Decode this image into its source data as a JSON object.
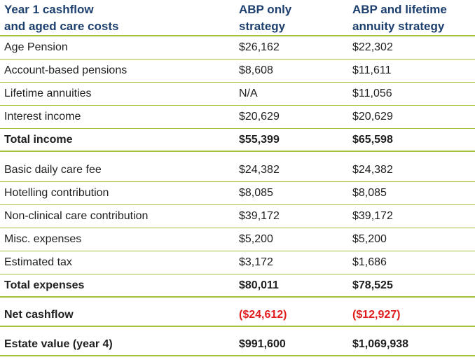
{
  "header": {
    "col1_line1": "Year 1 cashflow",
    "col1_line2": "and aged care costs",
    "col2_line1": "ABP only",
    "col2_line2": "strategy",
    "col3_line1": "ABP and lifetime",
    "col3_line2": "annuity strategy"
  },
  "income": [
    {
      "label": "Age Pension",
      "abp": "$26,162",
      "lifetime": "$22,302"
    },
    {
      "label": "Account-based pensions",
      "abp": "$8,608",
      "lifetime": "$11,611"
    },
    {
      "label": "Lifetime annuities",
      "abp": "N/A",
      "lifetime": "$11,056"
    },
    {
      "label": "Interest income",
      "abp": "$20,629",
      "lifetime": "$20,629"
    }
  ],
  "total_income": {
    "label": "Total income",
    "abp": "$55,399",
    "lifetime": "$65,598"
  },
  "expenses": [
    {
      "label": "Basic daily care fee",
      "abp": "$24,382",
      "lifetime": "$24,382"
    },
    {
      "label": "Hotelling contribution",
      "abp": "$8,085",
      "lifetime": "$8,085"
    },
    {
      "label": "Non-clinical care contribution",
      "abp": "$39,172",
      "lifetime": "$39,172"
    },
    {
      "label": "Misc. expenses",
      "abp": "$5,200",
      "lifetime": "$5,200"
    },
    {
      "label": "Estimated tax",
      "abp": "$3,172",
      "lifetime": "$1,686"
    }
  ],
  "total_expenses": {
    "label": "Total expenses",
    "abp": "$80,011",
    "lifetime": "$78,525"
  },
  "net_cashflow": {
    "label": "Net cashflow",
    "abp": "($24,612)",
    "lifetime": "($12,927)"
  },
  "estate_value": {
    "label": "Estate value (year 4)",
    "abp": "$991,600",
    "lifetime": "$1,069,938"
  },
  "colors": {
    "header_text": "#1d3f6e",
    "rule": "#a3c23a",
    "negative": "#e01c1c"
  }
}
